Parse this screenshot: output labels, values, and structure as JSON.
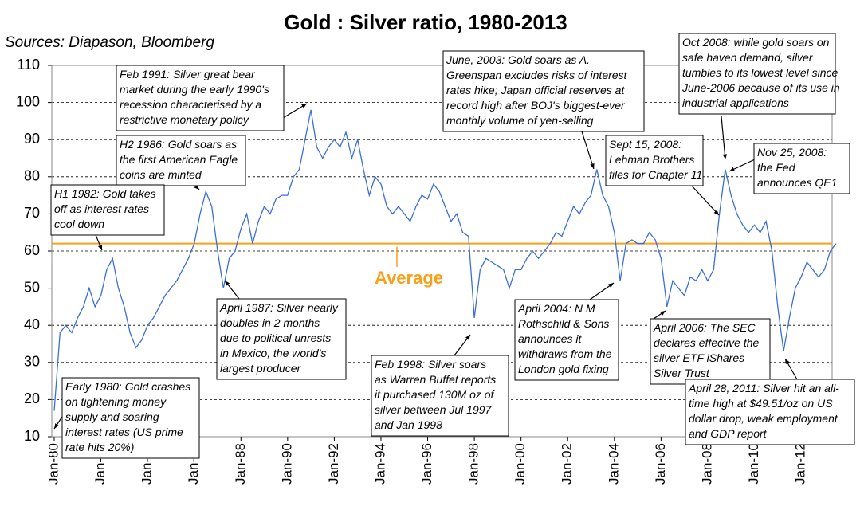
{
  "chart_data": {
    "type": "line",
    "title": "Gold : Silver ratio, 1980-2013",
    "subtitle": "Sources: Diapason, Bloomberg",
    "color": "#3a6fd8",
    "x": [
      "1980-01",
      "1980-04",
      "1980-07",
      "1980-10",
      "1981-01",
      "1981-04",
      "1981-07",
      "1981-10",
      "1982-01",
      "1982-04",
      "1982-07",
      "1982-10",
      "1983-01",
      "1983-04",
      "1983-07",
      "1983-10",
      "1984-01",
      "1984-04",
      "1984-07",
      "1984-10",
      "1985-01",
      "1985-04",
      "1985-07",
      "1985-10",
      "1986-01",
      "1986-04",
      "1986-07",
      "1986-10",
      "1987-01",
      "1987-04",
      "1987-07",
      "1987-10",
      "1988-01",
      "1988-04",
      "1988-07",
      "1988-10",
      "1989-01",
      "1989-04",
      "1989-07",
      "1989-10",
      "1990-01",
      "1990-04",
      "1990-07",
      "1990-10",
      "1991-01",
      "1991-04",
      "1991-07",
      "1991-10",
      "1992-01",
      "1992-04",
      "1992-07",
      "1992-10",
      "1993-01",
      "1993-04",
      "1993-07",
      "1993-10",
      "1994-01",
      "1994-04",
      "1994-07",
      "1994-10",
      "1995-01",
      "1995-04",
      "1995-07",
      "1995-10",
      "1996-01",
      "1996-04",
      "1996-07",
      "1996-10",
      "1997-01",
      "1997-04",
      "1997-07",
      "1997-10",
      "1998-01",
      "1998-04",
      "1998-07",
      "1998-10",
      "1999-01",
      "1999-04",
      "1999-07",
      "1999-10",
      "2000-01",
      "2000-04",
      "2000-07",
      "2000-10",
      "2001-01",
      "2001-04",
      "2001-07",
      "2001-10",
      "2002-01",
      "2002-04",
      "2002-07",
      "2002-10",
      "2003-01",
      "2003-04",
      "2003-07",
      "2003-10",
      "2004-01",
      "2004-04",
      "2004-07",
      "2004-10",
      "2005-01",
      "2005-04",
      "2005-07",
      "2005-10",
      "2006-01",
      "2006-04",
      "2006-07",
      "2006-10",
      "2007-01",
      "2007-04",
      "2007-07",
      "2007-10",
      "2008-01",
      "2008-04",
      "2008-07",
      "2008-10",
      "2009-01",
      "2009-04",
      "2009-07",
      "2009-10",
      "2010-01",
      "2010-04",
      "2010-07",
      "2010-10",
      "2011-01",
      "2011-04",
      "2011-07",
      "2011-10",
      "2012-01",
      "2012-04",
      "2012-07",
      "2012-10",
      "2013-01",
      "2013-04",
      "2013-07"
    ],
    "values": [
      17,
      38,
      40,
      38,
      42,
      45,
      50,
      45,
      48,
      55,
      58,
      50,
      45,
      38,
      34,
      36,
      40,
      42,
      45,
      48,
      50,
      52,
      55,
      58,
      62,
      70,
      76,
      72,
      60,
      50,
      58,
      60,
      66,
      70,
      62,
      68,
      72,
      70,
      74,
      75,
      75,
      80,
      82,
      90,
      98,
      88,
      85,
      88,
      90,
      88,
      92,
      85,
      90,
      82,
      75,
      80,
      78,
      72,
      70,
      72,
      70,
      68,
      72,
      75,
      74,
      78,
      76,
      72,
      68,
      70,
      65,
      64,
      42,
      55,
      58,
      57,
      56,
      55,
      50,
      55,
      55,
      58,
      60,
      58,
      60,
      62,
      65,
      64,
      68,
      72,
      70,
      73,
      75,
      82,
      75,
      72,
      65,
      52,
      62,
      63,
      62,
      62,
      65,
      63,
      58,
      45,
      52,
      50,
      48,
      53,
      52,
      55,
      52,
      55,
      70,
      82,
      75,
      70,
      67,
      65,
      67,
      65,
      68,
      60,
      45,
      33,
      42,
      50,
      53,
      57,
      55,
      53,
      55,
      60,
      62
    ],
    "xlim": [
      "1980-01",
      "2013-07"
    ],
    "xticks": [
      {
        "value": "1980-01",
        "label": "Jan-80"
      },
      {
        "value": "1982-01",
        "label": "Jan-82"
      },
      {
        "value": "1984-01",
        "label": "Jan-84"
      },
      {
        "value": "1986-01",
        "label": "Jan-86"
      },
      {
        "value": "1988-01",
        "label": "Jan-88"
      },
      {
        "value": "1990-01",
        "label": "Jan-90"
      },
      {
        "value": "1992-01",
        "label": "Jan-92"
      },
      {
        "value": "1994-01",
        "label": "Jan-94"
      },
      {
        "value": "1996-01",
        "label": "Jan-96"
      },
      {
        "value": "1998-01",
        "label": "Jan-98"
      },
      {
        "value": "2000-01",
        "label": "Jan-00"
      },
      {
        "value": "2002-01",
        "label": "Jan-02"
      },
      {
        "value": "2004-01",
        "label": "Jan-04"
      },
      {
        "value": "2006-01",
        "label": "Jan-06"
      },
      {
        "value": "2008-01",
        "label": "Jan-08"
      },
      {
        "value": "2010-01",
        "label": "Jan-10"
      },
      {
        "value": "2012-01",
        "label": "Jan-12"
      }
    ],
    "ylim": [
      10,
      110
    ],
    "yticks": [
      10,
      20,
      30,
      40,
      50,
      60,
      70,
      80,
      90,
      100,
      110
    ],
    "grid": true,
    "average": {
      "value": 62,
      "label": "Average",
      "color": "#f7a11a"
    },
    "annotations": [
      {
        "lines": [
          "Feb 1991: Silver great bear",
          "market during the early 1990's",
          "recession characterised by a",
          "restrictive monetary policy"
        ]
      },
      {
        "lines": [
          "H2 1986: Gold soars as",
          "the first American Eagle",
          "coins are minted"
        ]
      },
      {
        "lines": [
          "H1 1982: Gold takes",
          "off as interest rates",
          "cool down"
        ]
      },
      {
        "lines": [
          "April 1987: Silver nearly",
          "doubles in 2 months",
          "due to political unrests",
          "in Mexico, the world's",
          "largest producer"
        ]
      },
      {
        "lines": [
          "Early 1980: Gold crashes",
          "on tightening money",
          "supply and soaring",
          "interest rates (US prime",
          "rate hits 20%)"
        ]
      },
      {
        "lines": [
          "Feb 1998: Silver soars",
          "as Warren Buffet reports",
          "it purchased 130M oz of",
          "silver between Jul 1997",
          "and Jan 1998"
        ]
      },
      {
        "lines": [
          "June, 2003: Gold soars as A.",
          "Greenspan excludes risks of interest",
          "rates hike; Japan official reserves at",
          "record high after BOJ's biggest-ever",
          "monthly volume of yen-selling"
        ]
      },
      {
        "lines": [
          "April 2004: N M",
          "Rothschild & Sons",
          "announces it",
          "withdraws from the",
          "London gold fixing"
        ]
      },
      {
        "lines": [
          "Sept 15, 2008:",
          "Lehman Brothers",
          "files for Chapter 11"
        ]
      },
      {
        "lines": [
          "Oct 2008: while gold soars on",
          "safe haven demand, silver",
          "tumbles to its lowest level since",
          "June-2006 because of its use in",
          "industrial applications"
        ]
      },
      {
        "lines": [
          "Nov 25, 2008:",
          "the Fed",
          "announces QE1"
        ]
      },
      {
        "lines": [
          "April 2006: The SEC",
          "declares effective the",
          "silver ETF iShares",
          "Silver Trust"
        ]
      },
      {
        "lines": [
          "April 28, 2011: Silver hit an all-",
          "time high at $49.51/oz on US",
          "dollar drop, weak employment",
          "and GDP report"
        ]
      }
    ]
  }
}
